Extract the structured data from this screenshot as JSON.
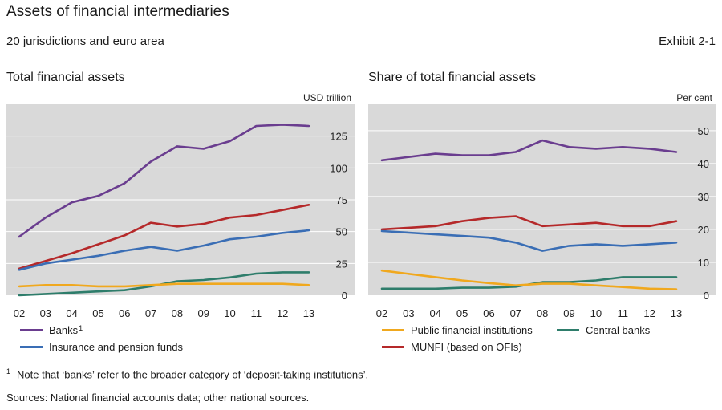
{
  "header": {
    "title": "Assets of financial intermediaries",
    "subtitle": "20 jurisdictions and euro area",
    "exhibit": "Exhibit 2-1"
  },
  "colors": {
    "purple": "#6a3d8f",
    "red": "#b5292a",
    "blue": "#3a6eb5",
    "teal": "#2e7d6b",
    "orange": "#f0a81e",
    "plot_bg": "#d9d9d9",
    "grid": "#ffffff"
  },
  "chart_data": [
    {
      "type": "line",
      "title": "Total financial assets",
      "unit": "USD trillion",
      "categories": [
        "02",
        "03",
        "04",
        "05",
        "06",
        "07",
        "08",
        "09",
        "10",
        "11",
        "12",
        "13"
      ],
      "ylim": [
        0,
        150
      ],
      "yticks": [
        0,
        25,
        50,
        75,
        100,
        125
      ],
      "grid": true,
      "y_axis_side": "right",
      "series": [
        {
          "name": "Banks",
          "footnote_ref": "1",
          "color": "#6a3d8f",
          "values": [
            46,
            61,
            73,
            78,
            88,
            105,
            117,
            115,
            121,
            133,
            134,
            133
          ]
        },
        {
          "name": "",
          "color": "#b5292a",
          "values": [
            21,
            27,
            33,
            40,
            47,
            57,
            54,
            56,
            61,
            63,
            67,
            71
          ]
        },
        {
          "name": "Insurance and pension funds",
          "color": "#3a6eb5",
          "values": [
            20,
            25,
            28,
            31,
            35,
            38,
            35,
            39,
            44,
            46,
            49,
            51
          ]
        },
        {
          "name": "",
          "color": "#2e7d6b",
          "values": [
            0,
            1,
            2,
            3,
            4,
            7,
            11,
            12,
            14,
            17,
            18,
            18
          ]
        },
        {
          "name": "",
          "color": "#f0a81e",
          "values": [
            7,
            8,
            8,
            7,
            7,
            8,
            9,
            9,
            9,
            9,
            9,
            8
          ]
        }
      ]
    },
    {
      "type": "line",
      "title": "Share of total financial assets",
      "unit": "Per cent",
      "categories": [
        "02",
        "03",
        "04",
        "05",
        "06",
        "07",
        "08",
        "09",
        "10",
        "11",
        "12",
        "13"
      ],
      "ylim": [
        0,
        58
      ],
      "yticks": [
        0,
        10,
        20,
        30,
        40,
        50
      ],
      "grid": true,
      "y_axis_side": "right",
      "series": [
        {
          "name": "",
          "color": "#6a3d8f",
          "values": [
            41,
            42,
            43,
            42.5,
            42.5,
            43.5,
            47,
            45,
            44.5,
            45,
            44.5,
            43.5
          ]
        },
        {
          "name": "MUNFI (based on OFIs)",
          "color": "#b5292a",
          "values": [
            20,
            20.5,
            21,
            22.5,
            23.5,
            24,
            21,
            21.5,
            22,
            21,
            21,
            22.5
          ]
        },
        {
          "name": "",
          "color": "#3a6eb5",
          "values": [
            19.5,
            19,
            18.5,
            18,
            17.5,
            16,
            13.5,
            15,
            15.5,
            15,
            15.5,
            16
          ]
        },
        {
          "name": "Central banks",
          "color": "#2e7d6b",
          "values": [
            2,
            2,
            2,
            2.3,
            2.3,
            2.6,
            4,
            4,
            4.5,
            5.5,
            5.5,
            5.5
          ]
        },
        {
          "name": "Public financial institutions",
          "color": "#f0a81e",
          "values": [
            7.5,
            6.5,
            5.5,
            4.5,
            3.7,
            3,
            3.5,
            3.5,
            3,
            2.5,
            2,
            1.8
          ]
        }
      ]
    }
  ],
  "legend_left": [
    {
      "label": "Banks",
      "sup": "1",
      "color": "#6a3d8f"
    },
    {
      "label": "Insurance and pension funds",
      "color": "#3a6eb5"
    }
  ],
  "legend_right": [
    {
      "label": "Public financial institutions",
      "color": "#f0a81e"
    },
    {
      "label": "Central banks",
      "color": "#2e7d6b"
    },
    {
      "label": "MUNFI (based on OFIs)",
      "color": "#b5292a"
    }
  ],
  "footnote": {
    "marker": "1",
    "text": "Note that ‘banks’ refer to the broader category of ‘deposit-taking institutions’."
  },
  "sources": "Sources: National financial accounts data; other national sources."
}
